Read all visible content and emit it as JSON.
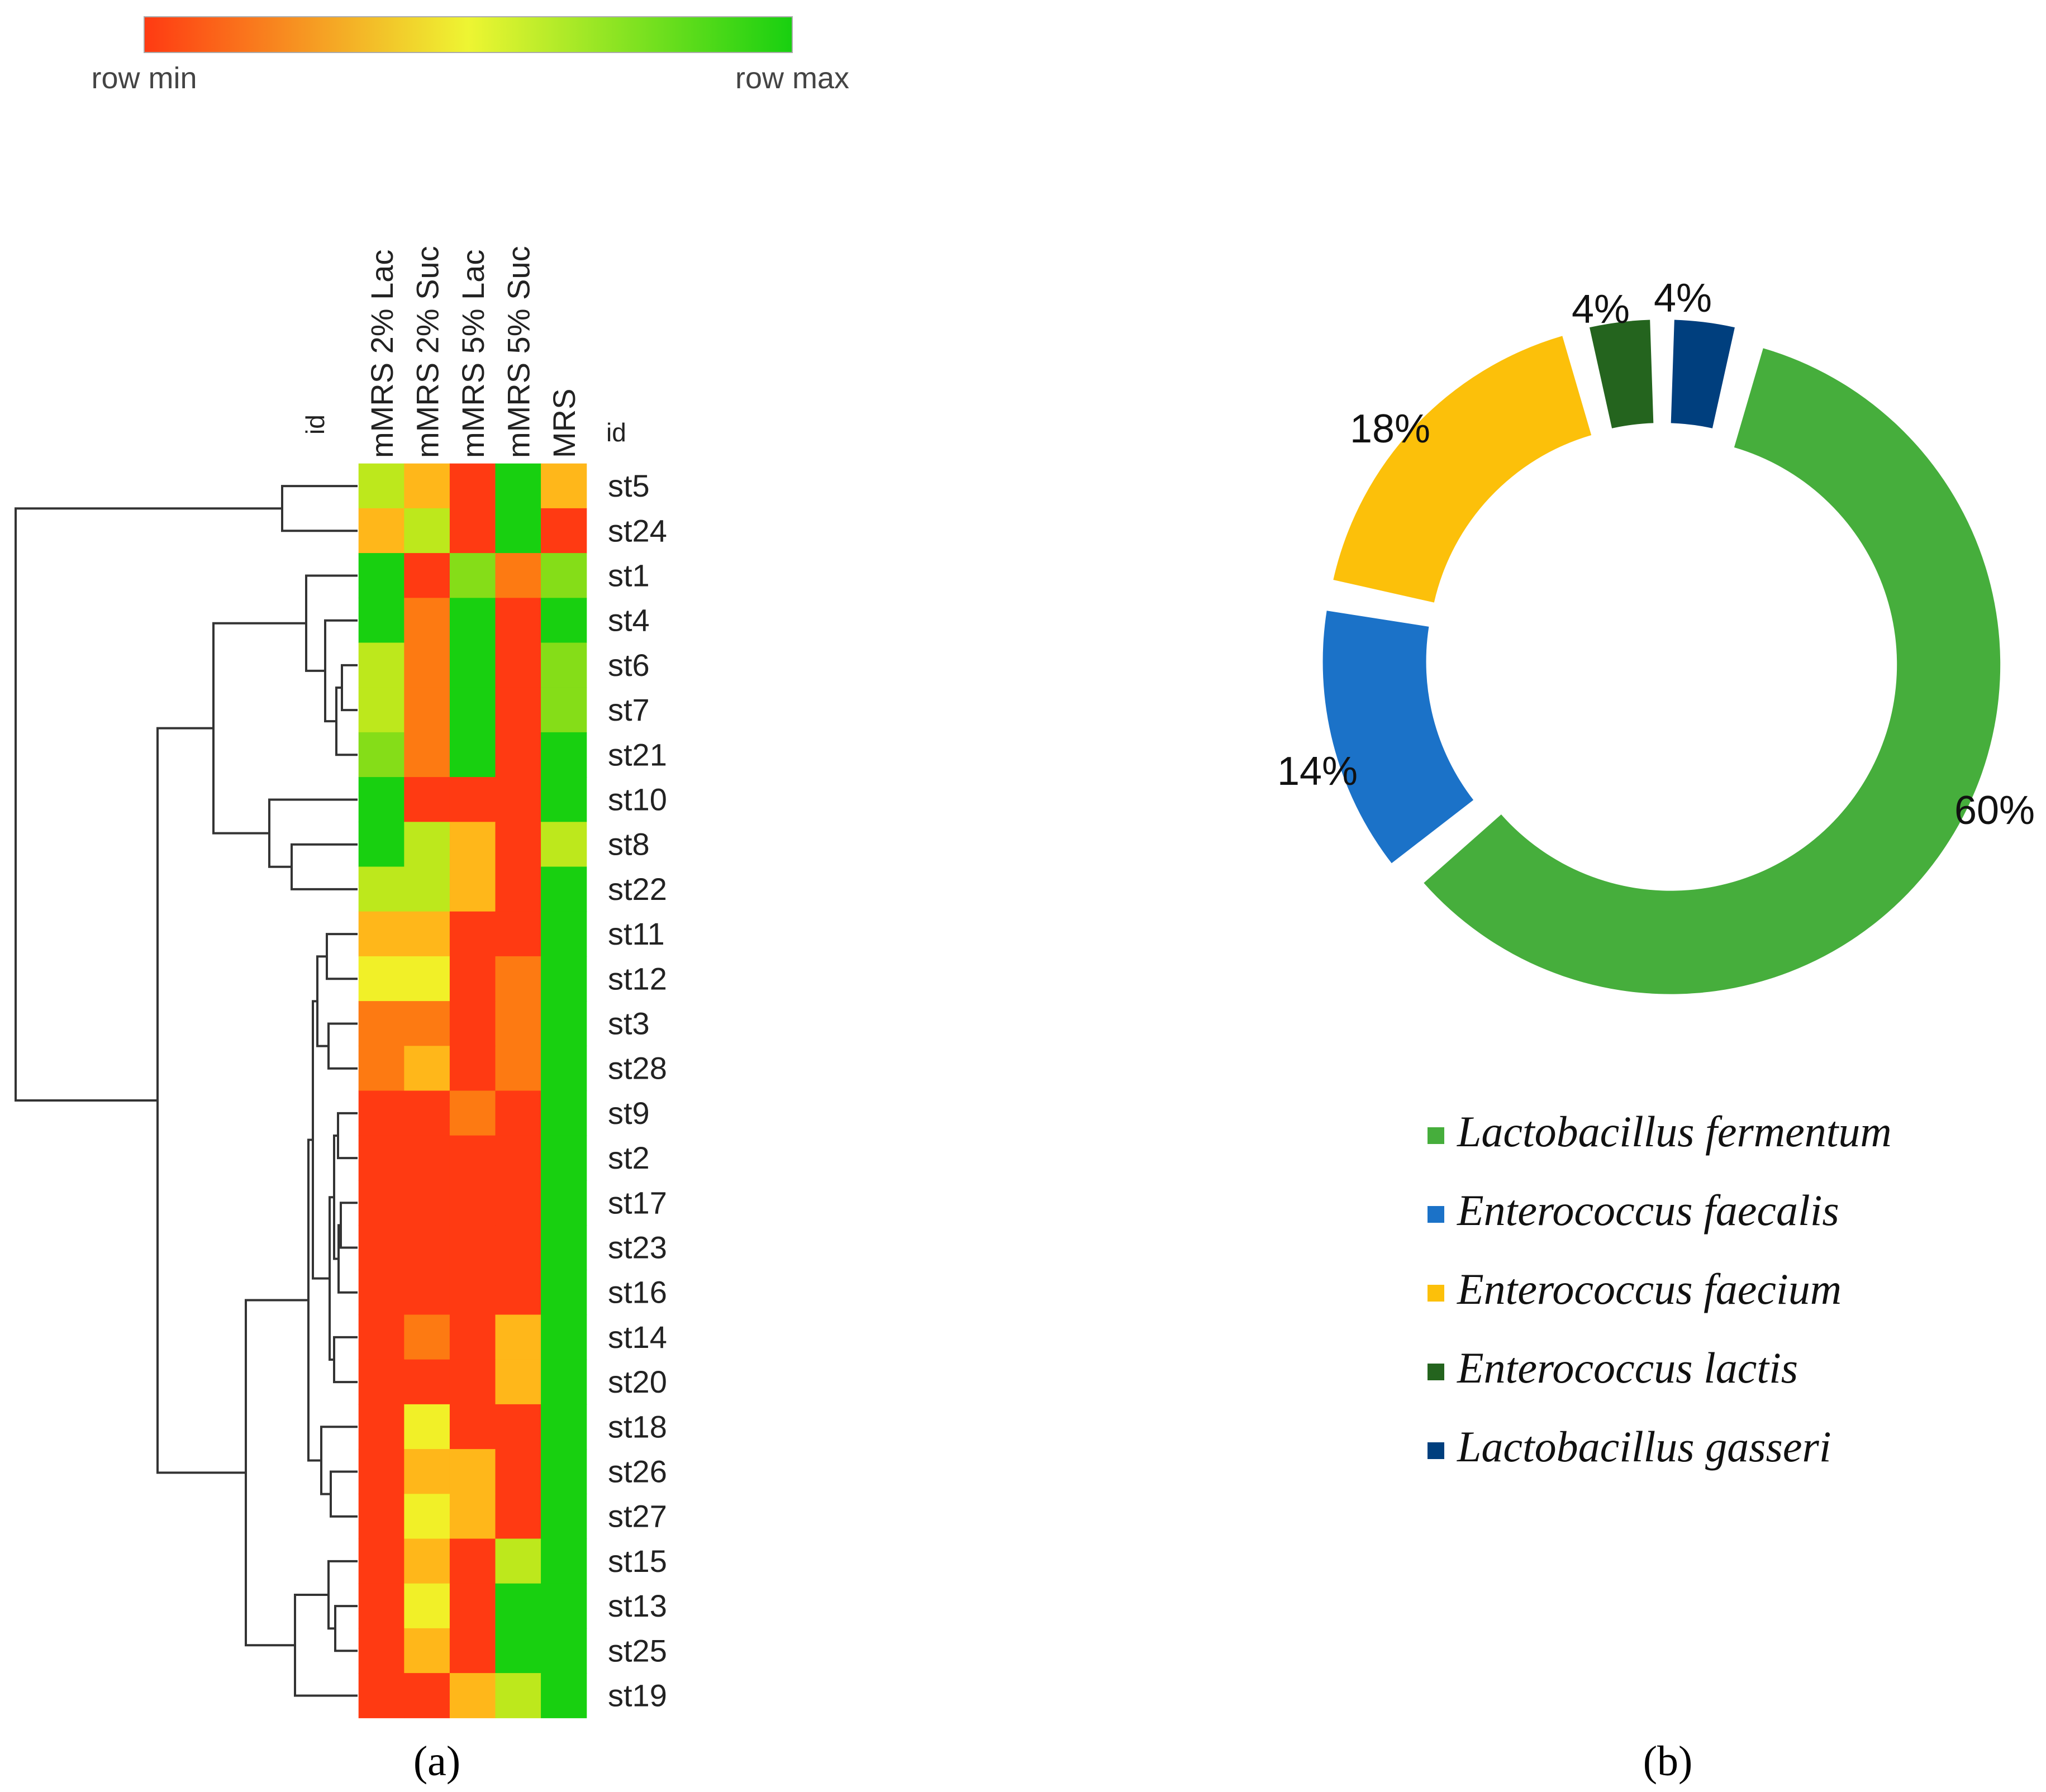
{
  "colors": {
    "row_min": "#ff3a12",
    "mid": "#eef532",
    "row_max": "#18d010",
    "heat_palette": {
      "0": "#ff3a12",
      "1": "#fd7a12",
      "2": "#ffb71a",
      "3": "#f1f028",
      "4": "#bde81c",
      "5": "#85dd18",
      "6": "#18d010"
    }
  },
  "panel_a": {
    "label": "(a)",
    "scale_legend": {
      "min_label": "row min",
      "max_label": "row max"
    },
    "id_label_left": "id",
    "id_label_right": "id",
    "dendrogram_label": "hierarchical clustering dendrogram of strains"
  },
  "panel_b": {
    "label": "(b)"
  },
  "chart_data": [
    {
      "type": "heatmap",
      "title": "",
      "x_categories": [
        "mMRS 2% Lac",
        "mMRS 2% Suc",
        "mMRS 5% Lac",
        "mMRS 5% Suc",
        "MRS"
      ],
      "y_categories": [
        "st5",
        "st24",
        "st1",
        "st4",
        "st6",
        "st7",
        "st21",
        "st10",
        "st8",
        "st22",
        "st11",
        "st12",
        "st3",
        "st28",
        "st9",
        "st2",
        "st17",
        "st23",
        "st16",
        "st14",
        "st20",
        "st18",
        "st26",
        "st27",
        "st15",
        "st13",
        "st25",
        "st19"
      ],
      "scale": "row-normalized, 0 = row min, 6 = row max",
      "values": [
        [
          4,
          2,
          0,
          6,
          2
        ],
        [
          2,
          4,
          0,
          6,
          0
        ],
        [
          6,
          0,
          5,
          1,
          5
        ],
        [
          6,
          1,
          6,
          0,
          6
        ],
        [
          4,
          1,
          6,
          0,
          5
        ],
        [
          4,
          1,
          6,
          0,
          5
        ],
        [
          5,
          1,
          6,
          0,
          6
        ],
        [
          6,
          0,
          0,
          0,
          6
        ],
        [
          6,
          4,
          2,
          0,
          4
        ],
        [
          4,
          4,
          2,
          0,
          6
        ],
        [
          2,
          2,
          0,
          0,
          6
        ],
        [
          3,
          3,
          0,
          1,
          6
        ],
        [
          1,
          1,
          0,
          1,
          6
        ],
        [
          1,
          2,
          0,
          1,
          6
        ],
        [
          0,
          0,
          1,
          0,
          6
        ],
        [
          0,
          0,
          0,
          0,
          6
        ],
        [
          0,
          0,
          0,
          0,
          6
        ],
        [
          0,
          0,
          0,
          0,
          6
        ],
        [
          0,
          0,
          0,
          0,
          6
        ],
        [
          0,
          1,
          0,
          2,
          6
        ],
        [
          0,
          0,
          0,
          2,
          6
        ],
        [
          0,
          3,
          0,
          0,
          6
        ],
        [
          0,
          2,
          2,
          0,
          6
        ],
        [
          0,
          3,
          2,
          0,
          6
        ],
        [
          0,
          2,
          0,
          4,
          6
        ],
        [
          0,
          3,
          0,
          6,
          6
        ],
        [
          0,
          2,
          0,
          6,
          6
        ],
        [
          0,
          0,
          2,
          4,
          6
        ]
      ]
    },
    {
      "type": "pie",
      "variant": "donut",
      "title": "",
      "slices": [
        {
          "name": "Lactobacillus fermentum",
          "value": 60,
          "label": "60%",
          "color": "#46ae3c"
        },
        {
          "name": "Enterococcus faecalis",
          "value": 14,
          "label": "14%",
          "color": "#1b72c8"
        },
        {
          "name": "Enterococcus faecium",
          "value": 18,
          "label": "18%",
          "color": "#fcc00a"
        },
        {
          "name": "Enterococcus lactis",
          "value": 4,
          "label": "4%",
          "color": "#24641e"
        },
        {
          "name": "Lactobacillus gasseri",
          "value": 4,
          "label": "4%",
          "color": "#003f7e"
        }
      ],
      "legend_position": "bottom"
    }
  ]
}
